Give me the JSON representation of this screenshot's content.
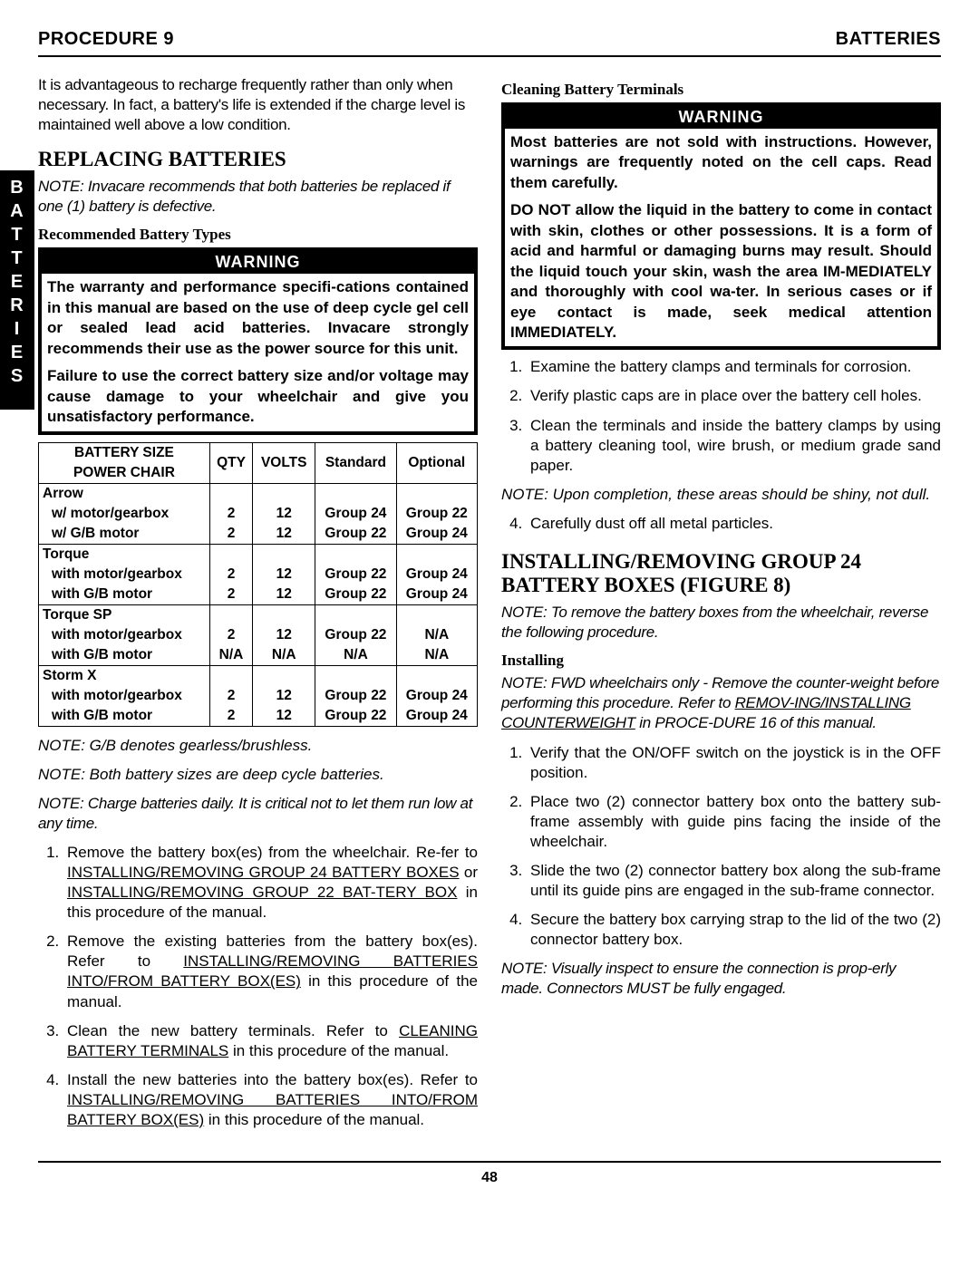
{
  "header": {
    "left": "PROCEDURE 9",
    "right": "BATTERIES"
  },
  "side_tab": [
    "B",
    "A",
    "T",
    "T",
    "E",
    "R",
    "I",
    "E",
    "S"
  ],
  "col1": {
    "intro": "It is advantageous to recharge frequently rather than only when necessary. In fact, a battery's life is extended if the charge level is maintained well above a low condition.",
    "replacing_h": "REPLACING BATTERIES",
    "replacing_note": "NOTE: Invacare recommends that both batteries be replaced if one (1) battery is defective.",
    "rec_types_h": "Recommended Battery Types",
    "warning_label": "WARNING",
    "warn1_p1": "The warranty and performance specifi-cations contained in this manual are based on the use of deep cycle gel cell or sealed lead acid batteries. Invacare strongly recommends their use as the power source for this unit.",
    "warn1_p2": "Failure to use the correct battery size and/or voltage may cause damage to your wheelchair and give you unsatisfactory performance.",
    "table": {
      "head1": "BATTERY SIZE",
      "head2": "POWER CHAIR",
      "cols": [
        "QTY",
        "VOLTS",
        "Standard",
        "Optional"
      ],
      "groups": [
        {
          "name": "Arrow",
          "rows": [
            {
              "label": "w/ motor/gearbox",
              "qty": "2",
              "volts": "12",
              "std": "Group 24",
              "opt": "Group 22"
            },
            {
              "label": "w/ G/B motor",
              "qty": "2",
              "volts": "12",
              "std": "Group 22",
              "opt": "Group 24"
            }
          ]
        },
        {
          "name": "Torque",
          "rows": [
            {
              "label": "with motor/gearbox",
              "qty": "2",
              "volts": "12",
              "std": "Group 22",
              "opt": "Group 24"
            },
            {
              "label": "with G/B motor",
              "qty": "2",
              "volts": "12",
              "std": "Group 22",
              "opt": "Group 24"
            }
          ]
        },
        {
          "name": "Torque SP",
          "rows": [
            {
              "label": "with motor/gearbox",
              "qty": "2",
              "volts": "12",
              "std": "Group 22",
              "opt": "N/A"
            },
            {
              "label": "with G/B motor",
              "qty": "N/A",
              "volts": "N/A",
              "std": "N/A",
              "opt": "N/A"
            }
          ]
        },
        {
          "name": "Storm X",
          "rows": [
            {
              "label": "with motor/gearbox",
              "qty": "2",
              "volts": "12",
              "std": "Group 22",
              "opt": "Group 24"
            },
            {
              "label": "with G/B motor",
              "qty": "2",
              "volts": "12",
              "std": "Group 22",
              "opt": "Group 24"
            }
          ]
        }
      ]
    },
    "note_gb": "NOTE: G/B denotes gearless/brushless.",
    "note_sizes": "NOTE: Both battery sizes are deep cycle batteries.",
    "note_charge": "NOTE: Charge batteries daily. It is critical not to let them run low at any time.",
    "steps_replace": [
      {
        "pre": "Remove the battery box(es) from the wheelchair. Re-fer to ",
        "u1": "INSTALLING/REMOVING GROUP 24 BATTERY BOXES",
        "mid": " or ",
        "u2": "INSTALLING/REMOVING GROUP 22 BAT-TERY BOX",
        "post": "  in this procedure of the manual."
      },
      {
        "pre": "Remove the existing batteries from the battery box(es). Refer to ",
        "u1": "INSTALLING/REMOVING BATTERIES INTO/FROM BATTERY BOX(ES)",
        "mid": "",
        "u2": "",
        "post": " in this procedure of the manual."
      },
      {
        "pre": "Clean the new battery terminals. Refer to ",
        "u1": "CLEANING BATTERY TERMINALS",
        "mid": "",
        "u2": "",
        "post": " in this procedure of the manual."
      },
      {
        "pre": "Install the new batteries into the battery box(es). Refer to ",
        "u1": "INSTALLING/REMOVING BATTERIES INTO/FROM BATTERY BOX(ES)",
        "mid": "",
        "u2": "",
        "post": " in this procedure of the manual."
      }
    ]
  },
  "col2": {
    "cleaning_h": "Cleaning Battery Terminals",
    "warning_label": "WARNING",
    "warn2_p1": "Most batteries are not sold with instructions. However, warnings are frequently noted on the cell caps. Read them carefully.",
    "warn2_p2": "DO NOT allow the liquid in the battery to come in contact with skin, clothes or other possessions. It is a form of acid and harmful or damaging burns may result. Should the liquid touch your skin, wash the area IM-MEDIATELY and thoroughly with cool wa-ter. In serious cases or if eye contact is made, seek medical attention IMMEDIATELY.",
    "clean_steps": [
      "Examine the battery clamps and terminals for corrosion.",
      "Verify plastic caps are in place over the battery cell holes.",
      "Clean the terminals and inside the battery clamps by using a battery cleaning tool, wire brush, or medium grade sand paper."
    ],
    "clean_note": "NOTE: Upon completion, these areas should be shiny, not dull.",
    "clean_step4": "Carefully dust off all metal particles.",
    "install_h": "INSTALLING/REMOVING GROUP 24 BATTERY BOXES (FIGURE 8)",
    "install_note1": "NOTE: To remove the battery boxes from the wheelchair, reverse the following procedure.",
    "installing_h": "Installing",
    "install_note2_pre": "NOTE: FWD wheelchairs only - Remove the counter-weight before performing this procedure. Refer to ",
    "install_note2_u": "REMOV-ING/INSTALLING COUNTERWEIGHT",
    "install_note2_post": " in PROCE-DURE 16 of this manual.",
    "install_steps": [
      "Verify that the ON/OFF switch on the joystick is in the OFF position.",
      "Place two (2) connector battery box onto the battery sub-frame assembly with guide pins facing the inside of the wheelchair.",
      "Slide the two (2) connector battery box along the sub-frame until its guide pins are engaged in the sub-frame connector.",
      "Secure the battery box carrying strap to the lid of the two (2) connector battery box."
    ],
    "install_note3": "NOTE: Visually inspect to ensure the connection is prop-erly made. Connectors MUST be fully engaged."
  },
  "page_number": "48"
}
